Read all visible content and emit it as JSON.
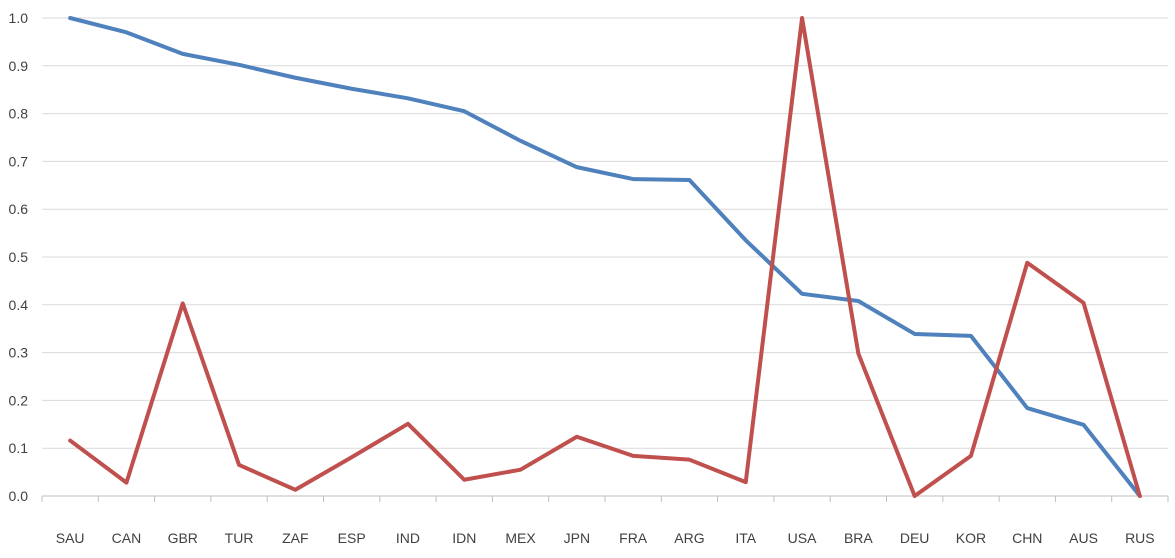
{
  "chart_data": {
    "type": "line",
    "title": "",
    "xlabel": "",
    "ylabel": "",
    "categories": [
      "SAU",
      "CAN",
      "GBR",
      "TUR",
      "ZAF",
      "ESP",
      "IND",
      "IDN",
      "MEX",
      "JPN",
      "FRA",
      "ARG",
      "ITA",
      "USA",
      "BRA",
      "DEU",
      "KOR",
      "CHN",
      "AUS",
      "RUS"
    ],
    "ylim": [
      0,
      1.0
    ],
    "yticks": [
      "0.0",
      "0.1",
      "0.2",
      "0.3",
      "0.4",
      "0.5",
      "0.6",
      "0.7",
      "0.8",
      "0.9",
      "1.0"
    ],
    "grid": true,
    "legend": "none",
    "series": [
      {
        "color": "#4f81bd",
        "values": [
          1.0,
          0.97,
          0.925,
          0.902,
          0.875,
          0.852,
          0.832,
          0.805,
          0.743,
          0.688,
          0.663,
          0.661,
          0.535,
          0.423,
          0.408,
          0.339,
          0.335,
          0.184,
          0.149,
          0.0
        ]
      },
      {
        "color": "#c0504d",
        "values": [
          0.116,
          0.028,
          0.403,
          0.065,
          0.013,
          0.081,
          0.151,
          0.034,
          0.055,
          0.124,
          0.084,
          0.076,
          0.029,
          1.0,
          0.298,
          0.0,
          0.084,
          0.488,
          0.404,
          0.0
        ]
      }
    ]
  }
}
